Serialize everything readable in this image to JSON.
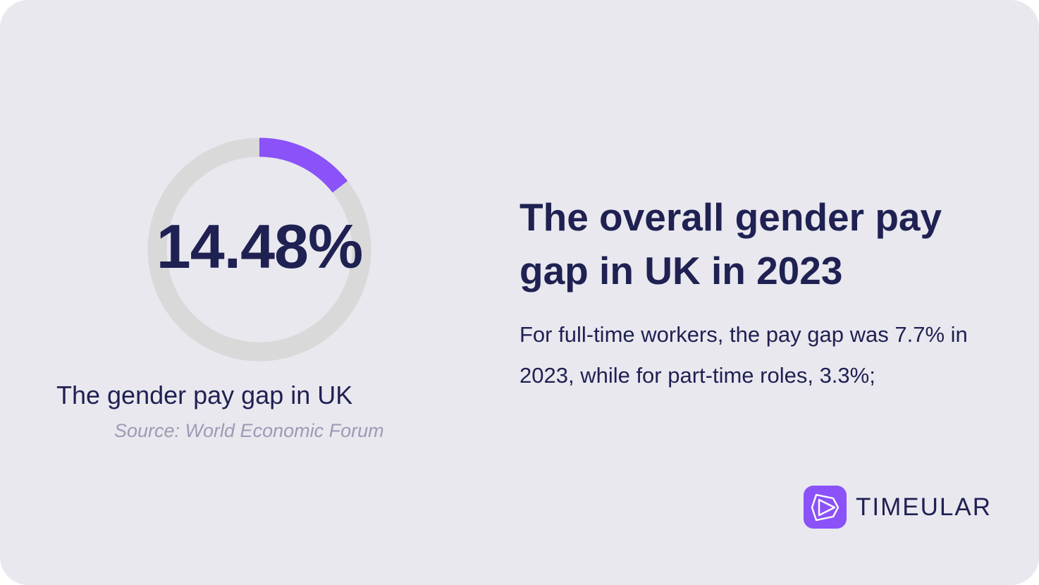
{
  "stat": {
    "value_text": "14.48%",
    "percent": 14.48,
    "label": "The gender pay gap in UK",
    "source": "Source: World Economic Forum"
  },
  "headline": "The overall gender pay gap in UK in 2023",
  "body": "For full-time workers, the pay gap was 7.7% in 2023, while for part-time roles, 3.3%;",
  "brand": {
    "name": "TIMEULAR",
    "icon": "timeular-logo-icon"
  },
  "colors": {
    "background": "#e9e8ef",
    "accent": "#8a52f8",
    "track": "#d9d9d9",
    "text": "#1f2152",
    "muted": "#9c9bb3"
  }
}
